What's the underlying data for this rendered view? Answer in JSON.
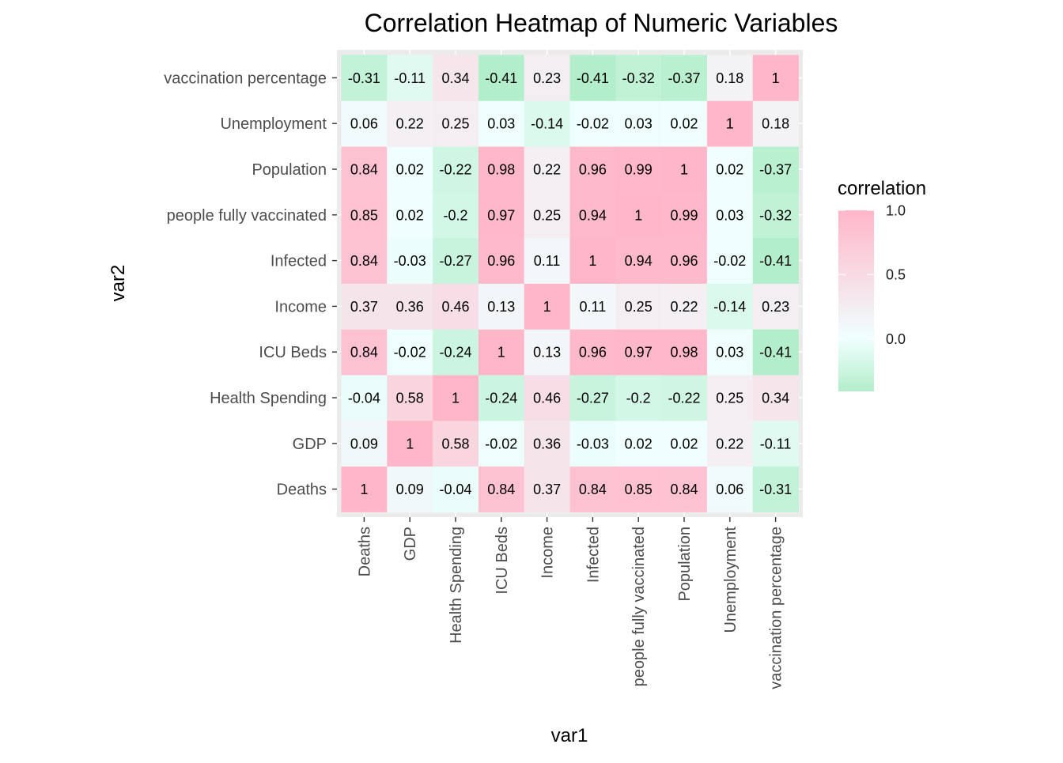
{
  "chart_data": {
    "type": "heatmap",
    "title": "Correlation Heatmap of Numeric Variables",
    "xlabel": "var1",
    "ylabel": "var2",
    "x_categories": [
      "Deaths",
      "GDP",
      "Health Spending",
      "ICU Beds",
      "Income",
      "Infected",
      "people fully vaccinated",
      "Population",
      "Unemployment",
      "vaccination percentage"
    ],
    "y_categories": [
      "Deaths",
      "GDP",
      "Health Spending",
      "ICU Beds",
      "Income",
      "Infected",
      "people fully vaccinated",
      "Population",
      "Unemployment",
      "vaccination percentage"
    ],
    "values": [
      [
        1,
        0.09,
        -0.04,
        0.84,
        0.37,
        0.84,
        0.85,
        0.84,
        0.06,
        -0.31
      ],
      [
        0.09,
        1,
        0.58,
        -0.02,
        0.36,
        -0.03,
        0.02,
        0.02,
        0.22,
        -0.11
      ],
      [
        -0.04,
        0.58,
        1,
        -0.24,
        0.46,
        -0.27,
        -0.2,
        -0.22,
        0.25,
        0.34
      ],
      [
        0.84,
        -0.02,
        -0.24,
        1,
        0.13,
        0.96,
        0.97,
        0.98,
        0.03,
        -0.41
      ],
      [
        0.37,
        0.36,
        0.46,
        0.13,
        1,
        0.11,
        0.25,
        0.22,
        -0.14,
        0.23
      ],
      [
        0.84,
        -0.03,
        -0.27,
        0.96,
        0.11,
        1,
        0.94,
        0.96,
        -0.02,
        -0.41
      ],
      [
        0.85,
        0.02,
        -0.2,
        0.97,
        0.25,
        0.94,
        1,
        0.99,
        0.03,
        -0.32
      ],
      [
        0.84,
        0.02,
        -0.22,
        0.98,
        0.22,
        0.96,
        0.99,
        1,
        0.02,
        -0.37
      ],
      [
        0.06,
        0.22,
        0.25,
        0.03,
        -0.14,
        -0.02,
        0.03,
        0.02,
        1,
        0.18
      ],
      [
        -0.31,
        -0.11,
        0.34,
        -0.41,
        0.23,
        -0.41,
        -0.32,
        -0.37,
        0.18,
        1
      ]
    ],
    "legend": {
      "title": "correlation",
      "position": "right",
      "ticks": [
        1.0,
        0.5,
        0.0
      ],
      "tick_labels": [
        "1.0",
        "0.5",
        "0.0"
      ],
      "range": [
        -0.41,
        1.0
      ]
    },
    "colors": {
      "low": "#b3eecb",
      "mid": "#f0ffff",
      "high": "#ffb6c8",
      "panel_background": "#ebebeb"
    },
    "grid": true
  }
}
